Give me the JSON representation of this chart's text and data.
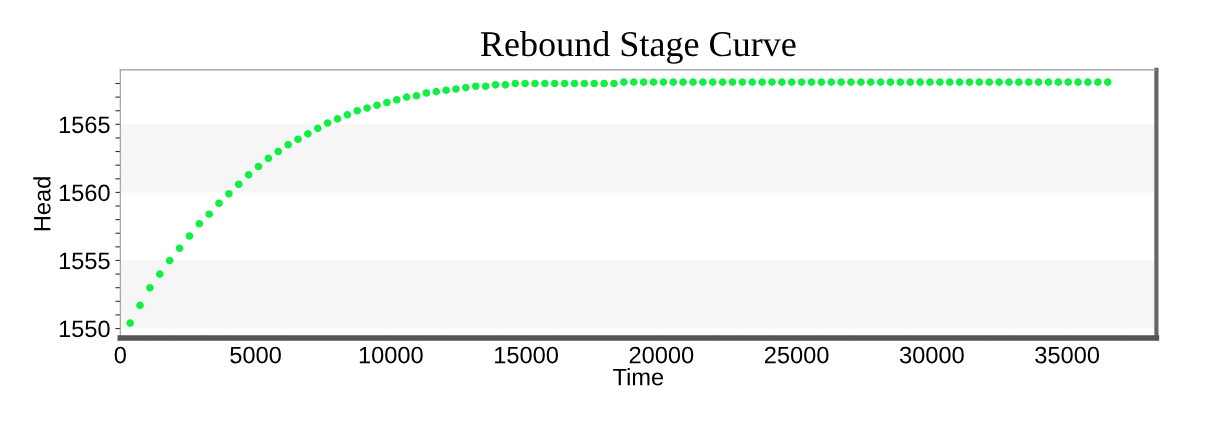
{
  "chart_data": {
    "type": "scatter",
    "title": "Rebound Stage Curve",
    "xlabel": "Time",
    "ylabel": "Head",
    "x": [
      365,
      730,
      1095,
      1460,
      1825,
      2190,
      2555,
      2920,
      3285,
      3650,
      4015,
      4380,
      4745,
      5110,
      5475,
      5840,
      6205,
      6570,
      6935,
      7300,
      7665,
      8030,
      8395,
      8760,
      9125,
      9490,
      9855,
      10220,
      10585,
      10950,
      11315,
      11680,
      12045,
      12410,
      12775,
      13140,
      13505,
      13870,
      14235,
      14600,
      14965,
      15330,
      15695,
      16060,
      16425,
      16790,
      17155,
      17520,
      17885,
      18250,
      18615,
      18980,
      19345,
      19710,
      20075,
      20440,
      20805,
      21170,
      21535,
      21900,
      22265,
      22630,
      22995,
      23360,
      23725,
      24090,
      24455,
      24820,
      25185,
      25550,
      25915,
      26280,
      26645,
      27010,
      27375,
      27740,
      28105,
      28470,
      28835,
      29200,
      29565,
      29930,
      30295,
      30660,
      31025,
      31390,
      31755,
      32120,
      32485,
      32850,
      33215,
      33580,
      33945,
      34310,
      34675,
      35040,
      35405,
      35770,
      36135,
      36500
    ],
    "series": [
      {
        "color": "#11ee44",
        "values": [
          1550.4,
          1551.7,
          1553.0,
          1554.0,
          1555.0,
          1555.9,
          1556.8,
          1557.7,
          1558.4,
          1559.2,
          1559.9,
          1560.6,
          1561.3,
          1561.9,
          1562.5,
          1563.0,
          1563.5,
          1563.9,
          1564.3,
          1564.7,
          1565.1,
          1565.4,
          1565.7,
          1566.0,
          1566.2,
          1566.4,
          1566.6,
          1566.8,
          1567.0,
          1567.1,
          1567.3,
          1567.4,
          1567.5,
          1567.6,
          1567.7,
          1567.8,
          1567.8,
          1567.9,
          1567.9,
          1568.0,
          1568.0,
          1568.0,
          1568.0,
          1568.0,
          1568.0,
          1568.0,
          1568.0,
          1568.0,
          1568.0,
          1568.0,
          1568.1,
          1568.1,
          1568.1,
          1568.1,
          1568.1,
          1568.1,
          1568.1,
          1568.1,
          1568.1,
          1568.1,
          1568.1,
          1568.1,
          1568.1,
          1568.1,
          1568.1,
          1568.1,
          1568.1,
          1568.1,
          1568.1,
          1568.1,
          1568.1,
          1568.1,
          1568.1,
          1568.1,
          1568.1,
          1568.1,
          1568.1,
          1568.1,
          1568.1,
          1568.1,
          1568.1,
          1568.1,
          1568.1,
          1568.1,
          1568.1,
          1568.1,
          1568.1,
          1568.1,
          1568.1,
          1568.1,
          1568.1,
          1568.1,
          1568.1,
          1568.1,
          1568.1,
          1568.1,
          1568.1,
          1568.1,
          1568.1,
          1568.1
        ]
      }
    ],
    "marker": "circle",
    "grid": false,
    "legend": false,
    "xlim": [
      0,
      38300
    ],
    "ylim": [
      1549.3,
      1569
    ],
    "xticks": [
      0,
      {
        "value": 1000,
        "label": null
      },
      {
        "value": 2000,
        "label": null
      },
      {
        "value": 3000,
        "label": null
      },
      {
        "value": 4000,
        "label": null
      },
      5000,
      {
        "value": 6000,
        "label": null
      },
      {
        "value": 7000,
        "label": null
      },
      {
        "value": 8000,
        "label": null
      },
      {
        "value": 9000,
        "label": null
      },
      10000,
      {
        "value": 11000,
        "label": null
      },
      {
        "value": 12000,
        "label": null
      },
      {
        "value": 13000,
        "label": null
      },
      {
        "value": 14000,
        "label": null
      },
      15000,
      {
        "value": 16000,
        "label": null
      },
      {
        "value": 17000,
        "label": null
      },
      {
        "value": 18000,
        "label": null
      },
      {
        "value": 19000,
        "label": null
      },
      20000,
      {
        "value": 21000,
        "label": null
      },
      {
        "value": 22000,
        "label": null
      },
      {
        "value": 23000,
        "label": null
      },
      {
        "value": 24000,
        "label": null
      },
      25000,
      {
        "value": 26000,
        "label": null
      },
      {
        "value": 27000,
        "label": null
      },
      {
        "value": 28000,
        "label": null
      },
      {
        "value": 29000,
        "label": null
      },
      30000,
      {
        "value": 31000,
        "label": null
      },
      {
        "value": 32000,
        "label": null
      },
      {
        "value": 33000,
        "label": null
      },
      {
        "value": 34000,
        "label": null
      },
      35000,
      {
        "value": 36000,
        "label": null
      },
      {
        "value": 37000,
        "label": null
      },
      {
        "value": 38000,
        "label": null
      }
    ],
    "yticks": [
      1550,
      {
        "value": 1551,
        "label": null
      },
      {
        "value": 1552,
        "label": null
      },
      {
        "value": 1553,
        "label": null
      },
      {
        "value": 1554,
        "label": null
      },
      1555,
      {
        "value": 1556,
        "label": null
      },
      {
        "value": 1557,
        "label": null
      },
      {
        "value": 1558,
        "label": null
      },
      {
        "value": 1559,
        "label": null
      },
      1560,
      {
        "value": 1561,
        "label": null
      },
      {
        "value": 1562,
        "label": null
      },
      {
        "value": 1563,
        "label": null
      },
      {
        "value": 1564,
        "label": null
      },
      1565,
      {
        "value": 1566,
        "label": null
      },
      {
        "value": 1567,
        "label": null
      },
      {
        "value": 1568,
        "label": null
      }
    ],
    "bands": [
      {
        "axis": "y",
        "from": 1550,
        "to": 1555,
        "color": "#f6f6f6"
      },
      {
        "axis": "y",
        "from": 1560,
        "to": 1565,
        "color": "#f6f6f6"
      }
    ]
  }
}
